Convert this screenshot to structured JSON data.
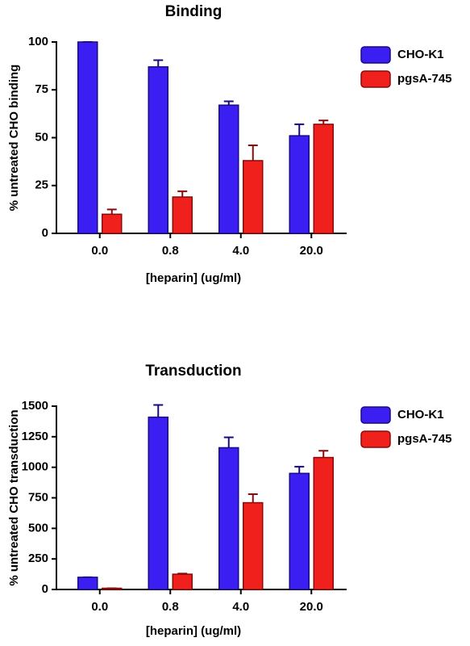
{
  "chart_data": [
    {
      "type": "bar",
      "title": "Binding",
      "y_label": "% untreated CHO binding",
      "x_label": "[heparin] (ug/ml)",
      "categories": [
        "0.0",
        "0.8",
        "4.0",
        "20.0"
      ],
      "series": [
        {
          "name": "CHO-K1",
          "color": "#3b1ff2",
          "values": [
            100,
            87,
            67,
            51
          ],
          "errors": [
            0,
            3.5,
            2,
            6
          ]
        },
        {
          "name": "pgsA-745",
          "color": "#f0201c",
          "values": [
            10,
            19,
            38,
            57
          ],
          "errors": [
            2.5,
            3,
            8,
            2
          ]
        }
      ],
      "ylim": [
        0,
        100
      ],
      "yticks": [
        0,
        25,
        50,
        75,
        100
      ]
    },
    {
      "type": "bar",
      "title": "Transduction",
      "y_label": "% untreated CHO transduction",
      "x_label": "[heparin] (ug/ml)",
      "categories": [
        "0.0",
        "0.8",
        "4.0",
        "20.0"
      ],
      "series": [
        {
          "name": "CHO-K1",
          "color": "#3b1ff2",
          "values": [
            100,
            1410,
            1160,
            950
          ],
          "errors": [
            0,
            100,
            85,
            55
          ]
        },
        {
          "name": "pgsA-745",
          "color": "#f0201c",
          "values": [
            10,
            125,
            710,
            1080
          ],
          "errors": [
            0,
            5,
            70,
            55
          ]
        }
      ],
      "ylim": [
        0,
        1500
      ],
      "yticks": [
        0,
        250,
        500,
        750,
        1000,
        1250,
        1500
      ]
    }
  ]
}
